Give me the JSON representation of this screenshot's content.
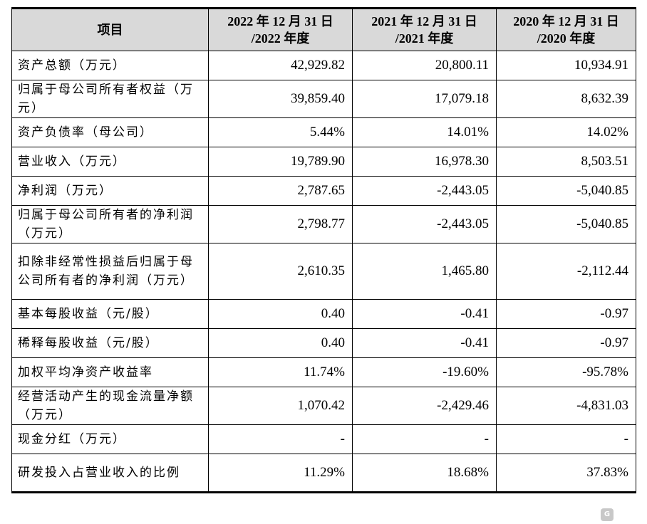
{
  "header": {
    "item": "项目",
    "col_2022": "2022 年 12 月 31 日 /2022 年度",
    "col_2021": "2021 年 12 月 31 日 /2021 年度",
    "col_2020": "2020 年 12 月 31 日 /2020 年度"
  },
  "rows": [
    {
      "label": "资产总额（万元）",
      "v2022": "42,929.82",
      "v2021": "20,800.11",
      "v2020": "10,934.91"
    },
    {
      "label": "归属于母公司所有者权益（万元）",
      "v2022": "39,859.40",
      "v2021": "17,079.18",
      "v2020": "8,632.39"
    },
    {
      "label": "资产负债率（母公司）",
      "v2022": "5.44%",
      "v2021": "14.01%",
      "v2020": "14.02%"
    },
    {
      "label": "营业收入（万元）",
      "v2022": "19,789.90",
      "v2021": "16,978.30",
      "v2020": "8,503.51"
    },
    {
      "label": "净利润（万元）",
      "v2022": "2,787.65",
      "v2021": "-2,443.05",
      "v2020": "-5,040.85"
    },
    {
      "label": "归属于母公司所有者的净利润（万元）",
      "v2022": "2,798.77",
      "v2021": "-2,443.05",
      "v2020": "-5,040.85"
    },
    {
      "label": "扣除非经常性损益后归属于母公司所有者的净利润（万元）",
      "v2022": "2,610.35",
      "v2021": "1,465.80",
      "v2020": "-2,112.44"
    },
    {
      "label": "基本每股收益（元/股）",
      "v2022": "0.40",
      "v2021": "-0.41",
      "v2020": "-0.97"
    },
    {
      "label": "稀释每股收益（元/股）",
      "v2022": "0.40",
      "v2021": "-0.41",
      "v2020": "-0.97"
    },
    {
      "label": "加权平均净资产收益率",
      "v2022": "11.74%",
      "v2021": "-19.60%",
      "v2020": "-95.78%"
    },
    {
      "label": "经营活动产生的现金流量净额（万元）",
      "v2022": "1,070.42",
      "v2021": "-2,429.46",
      "v2020": "-4,831.03"
    },
    {
      "label": "现金分红（万元）",
      "v2022": "-",
      "v2021": "-",
      "v2020": "-"
    },
    {
      "label": "研发投入占营业收入的比例",
      "v2022": "11.29%",
      "v2021": "18.68%",
      "v2020": "37.83%"
    }
  ],
  "watermark": {
    "text": "格隆汇",
    "logo": "G"
  }
}
